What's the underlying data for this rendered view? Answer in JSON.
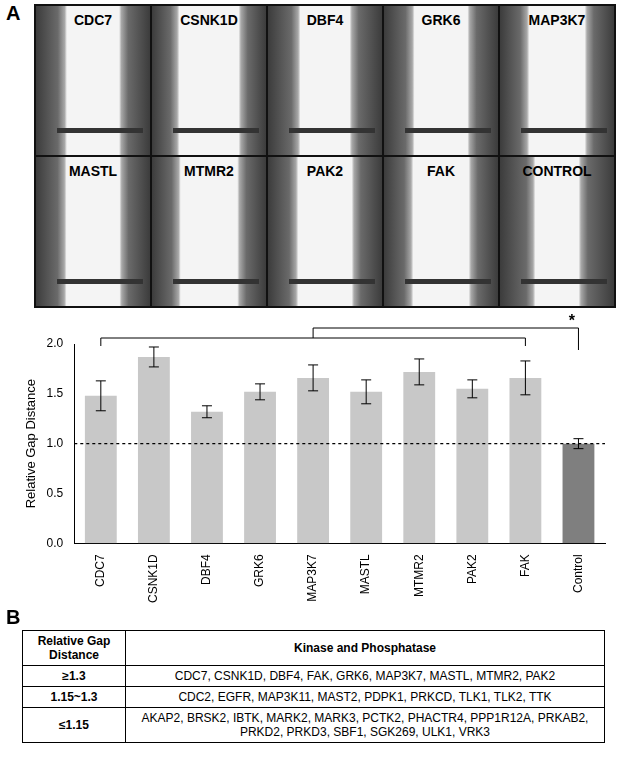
{
  "panel_a": {
    "label": "A",
    "images": [
      "CDC7",
      "CSNK1D",
      "DBF4",
      "GRK6",
      "MAP3K7",
      "MASTL",
      "MTMR2",
      "PAK2",
      "FAK",
      "CONTROL"
    ]
  },
  "chart_data": {
    "type": "bar",
    "y_label": "Relative Gap Distance",
    "categories": [
      "CDC7",
      "CSNK1D",
      "DBF4",
      "GRK6",
      "MAP3K7",
      "MASTL",
      "MTMR2",
      "PAK2",
      "FAK",
      "Control"
    ],
    "values": [
      1.48,
      1.87,
      1.32,
      1.52,
      1.66,
      1.52,
      1.72,
      1.55,
      1.66,
      1.0
    ],
    "errors": [
      0.15,
      0.1,
      0.06,
      0.08,
      0.13,
      0.12,
      0.13,
      0.09,
      0.17,
      0.05
    ],
    "colors": [
      "#c8c8c8",
      "#c8c8c8",
      "#c8c8c8",
      "#c8c8c8",
      "#c8c8c8",
      "#c8c8c8",
      "#c8c8c8",
      "#c8c8c8",
      "#c8c8c8",
      "#7f7f7f"
    ],
    "reference_line": 1.0,
    "significance": {
      "label": "*",
      "group": [
        "CDC7",
        "FAK"
      ],
      "versus": "Control"
    },
    "ylim": [
      0,
      2
    ],
    "yticks": [
      {
        "value": 0,
        "label": "0.0"
      },
      {
        "value": 0.5,
        "label": "0.5"
      },
      {
        "value": 1,
        "label": "1.0"
      },
      {
        "value": 1.5,
        "label": "1.5"
      },
      {
        "value": 2,
        "label": "2.0"
      }
    ],
    "grid": false
  },
  "panel_b": {
    "label": "B",
    "table": {
      "header": [
        "Relative Gap Distance",
        "Kinase and Phosphatase"
      ],
      "rows": [
        [
          "≥1.3",
          "CDC7, CSNK1D, DBF4, FAK, GRK6, MAP3K7, MASTL, MTMR2, PAK2"
        ],
        [
          "1.15~1.3",
          "CDC2, EGFR, MAP3K11, MAST2, PDPK1, PRKCD, TLK1, TLK2, TTK"
        ],
        [
          "≤1.15",
          "AKAP2, BRSK2, IBTK, MARK2, MARK3, PCTK2, PHACTR4, PPP1R12A, PRKAB2, PRKD2, PRKD3, SBF1, SGK269, ULK1, VRK3"
        ]
      ]
    }
  }
}
